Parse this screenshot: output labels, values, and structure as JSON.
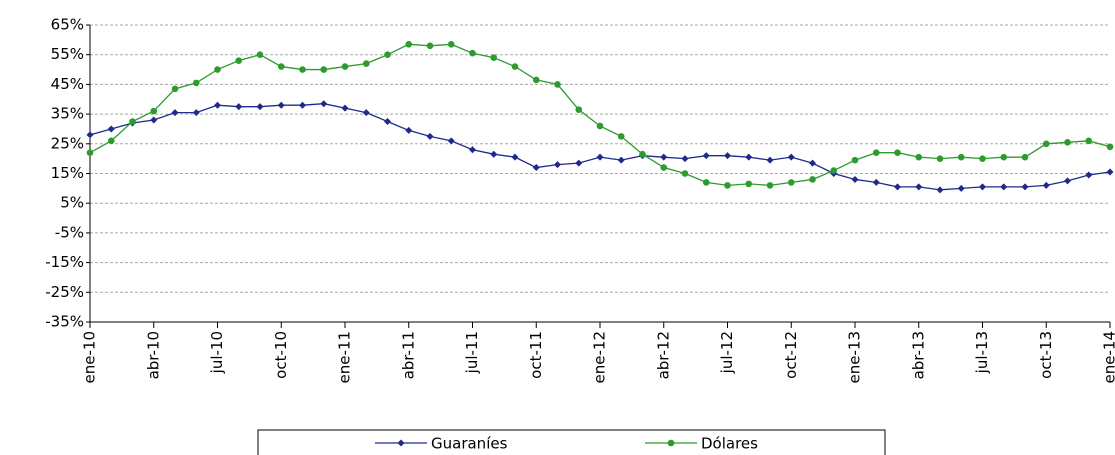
{
  "chart_data": {
    "type": "line",
    "categories": [
      "ene-10",
      null,
      null,
      "abr-10",
      null,
      null,
      "jul-10",
      null,
      null,
      "oct-10",
      null,
      null,
      "ene-11",
      null,
      null,
      "abr-11",
      null,
      null,
      "jul-11",
      null,
      null,
      "oct-11",
      null,
      null,
      "ene-12",
      null,
      null,
      "abr-12",
      null,
      null,
      "jul-12",
      null,
      null,
      "oct-12",
      null,
      null,
      "ene-13",
      null,
      null,
      "abr-13",
      null,
      null,
      "jul-13",
      null,
      null,
      "oct-13",
      null,
      null,
      "ene-14"
    ],
    "series": [
      {
        "name": "Guaraníes",
        "color": "#1f2a8c",
        "marker": "diamond",
        "values": [
          28,
          30,
          32,
          33,
          35.5,
          35.5,
          38,
          37.5,
          37.5,
          38,
          38,
          38.5,
          37,
          35.5,
          32.5,
          29.5,
          27.5,
          26,
          23,
          21.5,
          20.5,
          17,
          18,
          18.5,
          20.5,
          19.5,
          21,
          20.5,
          20,
          21,
          21,
          20.5,
          19.5,
          20.5,
          18.5,
          15,
          13,
          12,
          10.5,
          10.5,
          9.5,
          10,
          10.5,
          10.5,
          10.5,
          11,
          12.5,
          14.5,
          15.5
        ]
      },
      {
        "name": "Dólares",
        "color": "#2e9b2e",
        "marker": "circle",
        "values": [
          22,
          26,
          32.5,
          36,
          43.5,
          45.5,
          50,
          53,
          55,
          51,
          50,
          50,
          51,
          52,
          55,
          58.5,
          58,
          58.5,
          55.5,
          54,
          51,
          46.5,
          45,
          36.5,
          31,
          27.5,
          21.5,
          17,
          15,
          12,
          11,
          11.5,
          11,
          12,
          13,
          16,
          19.5,
          22,
          22,
          20.5,
          20,
          20.5,
          20,
          20.5,
          20.5,
          25,
          25.5,
          26,
          24
        ]
      }
    ],
    "ylim": [
      -35,
      65
    ],
    "yticks": [
      {
        "value": -35,
        "label": "-35%"
      },
      {
        "value": -25,
        "label": "-25%"
      },
      {
        "value": -15,
        "label": "-15%"
      },
      {
        "value": -5,
        "label": "-5%"
      },
      {
        "value": 5,
        "label": "5%"
      },
      {
        "value": 15,
        "label": "15%"
      },
      {
        "value": 25,
        "label": "25%"
      },
      {
        "value": 35,
        "label": "35%"
      },
      {
        "value": 45,
        "label": "45%"
      },
      {
        "value": 55,
        "label": "55%"
      },
      {
        "value": 65,
        "label": "65%"
      }
    ],
    "grid": true,
    "legend": "bottom"
  }
}
